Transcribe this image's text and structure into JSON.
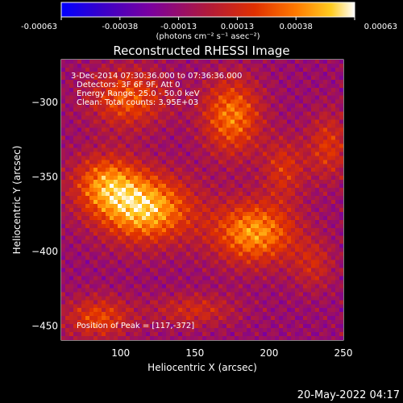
{
  "colorbar": {
    "ticks": [
      "-0.00063",
      "-0.00038",
      "-0.00013",
      "0.00013",
      "0.00038",
      "0.00063"
    ],
    "unit_label": "(photons cm⁻² s⁻¹ asec⁻²)",
    "colors": [
      "#0000ff",
      "#3a00c8",
      "#7a00a0",
      "#b01a3a",
      "#e03000",
      "#ff7a00",
      "#ffcc20",
      "#ffffff"
    ]
  },
  "chart_data": {
    "type": "heatmap",
    "title": "Reconstructed RHESSI Image",
    "xlabel": "Heliocentric X (arcsec)",
    "ylabel": "Heliocentric Y (arcsec)",
    "xlim": [
      60,
      250
    ],
    "ylim": [
      -460,
      -272
    ],
    "xticks": [
      100,
      150,
      200,
      250
    ],
    "yticks": [
      -300,
      -350,
      -400,
      -450
    ],
    "xtick_labels": [
      "100",
      "150",
      "200",
      "250"
    ],
    "ytick_labels": [
      "−300",
      "−350",
      "−400",
      "−450"
    ],
    "annotations": [
      "3-Dec-2014 07:30:36.000 to 07:36:36.000",
      "Detectors: 3F 6F 9F, Att 0",
      "Energy Range: 25.0 - 50.0 keV",
      "Clean: Total counts: 3.95E+03"
    ],
    "peak_label": "Position of Peak = [117,-372]",
    "peak": [
      117,
      -372
    ],
    "sources": [
      {
        "x": 117,
        "y": -372,
        "amp": 0.00063,
        "sx": 22,
        "sy": 16
      },
      {
        "x": 90,
        "y": -355,
        "amp": 0.00045,
        "sx": 16,
        "sy": 14
      },
      {
        "x": 190,
        "y": -388,
        "amp": 0.00055,
        "sx": 20,
        "sy": 15
      },
      {
        "x": 105,
        "y": -298,
        "amp": 0.0004,
        "sx": 18,
        "sy": 14
      },
      {
        "x": 175,
        "y": -310,
        "amp": 0.00048,
        "sx": 14,
        "sy": 18
      },
      {
        "x": 210,
        "y": -345,
        "amp": 0.00028,
        "sx": 10,
        "sy": 14
      },
      {
        "x": 240,
        "y": -330,
        "amp": 0.0003,
        "sx": 10,
        "sy": 16
      },
      {
        "x": 85,
        "y": -445,
        "amp": 0.00035,
        "sx": 16,
        "sy": 10
      },
      {
        "x": 150,
        "y": -440,
        "amp": 0.00025,
        "sx": 20,
        "sy": 8
      },
      {
        "x": 230,
        "y": -410,
        "amp": 0.00022,
        "sx": 10,
        "sy": 12
      }
    ],
    "background": -0.00012,
    "vmin": -0.00063,
    "vmax": 0.00063
  },
  "footer": {
    "timestamp": "20-May-2022 04:17"
  }
}
